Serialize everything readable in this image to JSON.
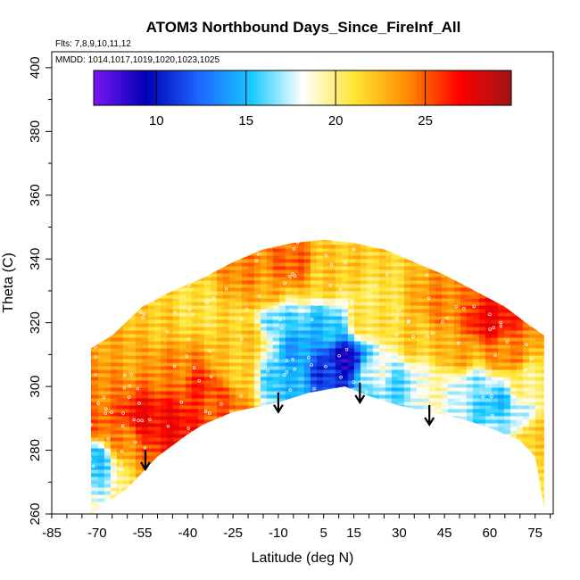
{
  "chart_data": {
    "type": "heatmap",
    "title": "ATOM3 Northbound Days_Since_FireInf_All",
    "flights_note": "Flts: 7,8,9,10,11,12",
    "mmdd_note": "MMDD: 1014,1017,1019,1020,1023,1025",
    "xlabel": "Latitude (deg N)",
    "ylabel": "Theta (C)",
    "xlim": [
      -85,
      81
    ],
    "ylim": [
      260,
      405
    ],
    "x_ticks": [
      "-85",
      "-70",
      "-55",
      "-40",
      "-25",
      "-10",
      "5",
      "15",
      "30",
      "45",
      "60",
      "75"
    ],
    "x_tick_values": [
      -85,
      -70,
      -55,
      -40,
      -25,
      -10,
      5,
      15,
      30,
      45,
      60,
      75
    ],
    "y_ticks": [
      "260",
      "280",
      "300",
      "320",
      "340",
      "360",
      "380",
      "400"
    ],
    "y_tick_values": [
      260,
      280,
      300,
      320,
      340,
      360,
      380,
      400
    ],
    "colorbar": {
      "min": 6.5,
      "max": 29.8,
      "ticks": [
        "10",
        "15",
        "20",
        "25"
      ],
      "tick_values": [
        10,
        15,
        20,
        25
      ],
      "colors": [
        "#7a17f5",
        "#0000b4",
        "#1e64ff",
        "#14c8ff",
        "#ffffff",
        "#ffe632",
        "#ff8c00",
        "#ff0000",
        "#a01414"
      ]
    },
    "envelope": {
      "top": [
        [
          -72,
          312
        ],
        [
          -65,
          316
        ],
        [
          -55,
          325
        ],
        [
          -45,
          330
        ],
        [
          -35,
          334
        ],
        [
          -25,
          339
        ],
        [
          -15,
          343
        ],
        [
          -5,
          345
        ],
        [
          5,
          346
        ],
        [
          15,
          345
        ],
        [
          25,
          343
        ],
        [
          35,
          339
        ],
        [
          45,
          335
        ],
        [
          55,
          330
        ],
        [
          65,
          325
        ],
        [
          72,
          320
        ],
        [
          78,
          316
        ]
      ],
      "bottom": [
        [
          78,
          262
        ],
        [
          75,
          278
        ],
        [
          70,
          283
        ],
        [
          60,
          287
        ],
        [
          50,
          290
        ],
        [
          40,
          292
        ],
        [
          30,
          294
        ],
        [
          20,
          297
        ],
        [
          12,
          300
        ],
        [
          0,
          298
        ],
        [
          -10,
          295
        ],
        [
          -25,
          292
        ],
        [
          -35,
          288
        ],
        [
          -40,
          285
        ],
        [
          -50,
          278
        ],
        [
          -60,
          268
        ],
        [
          -72,
          260
        ]
      ]
    },
    "regions": [
      {
        "lat": -62,
        "theta": 284,
        "value": 24
      },
      {
        "lat": -55,
        "theta": 290,
        "value": 27
      },
      {
        "lat": -45,
        "theta": 288,
        "value": 27
      },
      {
        "lat": -68,
        "theta": 300,
        "value": 24
      },
      {
        "lat": -60,
        "theta": 310,
        "value": 23
      },
      {
        "lat": -45,
        "theta": 305,
        "value": 24
      },
      {
        "lat": -35,
        "theta": 300,
        "value": 26
      },
      {
        "lat": -25,
        "theta": 305,
        "value": 22
      },
      {
        "lat": -50,
        "theta": 320,
        "value": 22
      },
      {
        "lat": -38,
        "theta": 325,
        "value": 21
      },
      {
        "lat": -15,
        "theta": 330,
        "value": 23
      },
      {
        "lat": -20,
        "theta": 315,
        "value": 22
      },
      {
        "lat": -5,
        "theta": 338,
        "value": 25
      },
      {
        "lat": 5,
        "theta": 335,
        "value": 22
      },
      {
        "lat": -10,
        "theta": 320,
        "value": 16
      },
      {
        "lat": -3,
        "theta": 312,
        "value": 14
      },
      {
        "lat": 7,
        "theta": 305,
        "value": 11
      },
      {
        "lat": 12,
        "theta": 308,
        "value": 9
      },
      {
        "lat": 5,
        "theta": 318,
        "value": 15
      },
      {
        "lat": -8,
        "theta": 303,
        "value": 15
      },
      {
        "lat": 20,
        "theta": 320,
        "value": 21
      },
      {
        "lat": 22,
        "theta": 305,
        "value": 18
      },
      {
        "lat": 30,
        "theta": 300,
        "value": 16
      },
      {
        "lat": 35,
        "theta": 315,
        "value": 22
      },
      {
        "lat": 45,
        "theta": 325,
        "value": 24
      },
      {
        "lat": 50,
        "theta": 310,
        "value": 23
      },
      {
        "lat": 55,
        "theta": 300,
        "value": 17
      },
      {
        "lat": 62,
        "theta": 295,
        "value": 15
      },
      {
        "lat": 65,
        "theta": 310,
        "value": 24
      },
      {
        "lat": 72,
        "theta": 300,
        "value": 20
      },
      {
        "lat": 75,
        "theta": 285,
        "value": 22
      },
      {
        "lat": -72,
        "theta": 278,
        "value": 15
      },
      {
        "lat": -70,
        "theta": 288,
        "value": 25
      },
      {
        "lat": 60,
        "theta": 320,
        "value": 27
      },
      {
        "lat": -20,
        "theta": 335,
        "value": 24
      },
      {
        "lat": 10,
        "theta": 342,
        "value": 22
      },
      {
        "lat": 40,
        "theta": 300,
        "value": 19
      },
      {
        "lat": -30,
        "theta": 295,
        "value": 25
      },
      {
        "lat": 68,
        "theta": 290,
        "value": 17
      }
    ],
    "arrows": [
      {
        "lat": -54,
        "theta": 282,
        "direction": "down"
      },
      {
        "lat": -10,
        "theta": 300,
        "direction": "down"
      },
      {
        "lat": 17,
        "theta": 303,
        "direction": "down"
      },
      {
        "lat": 40,
        "theta": 296,
        "direction": "down"
      }
    ]
  }
}
